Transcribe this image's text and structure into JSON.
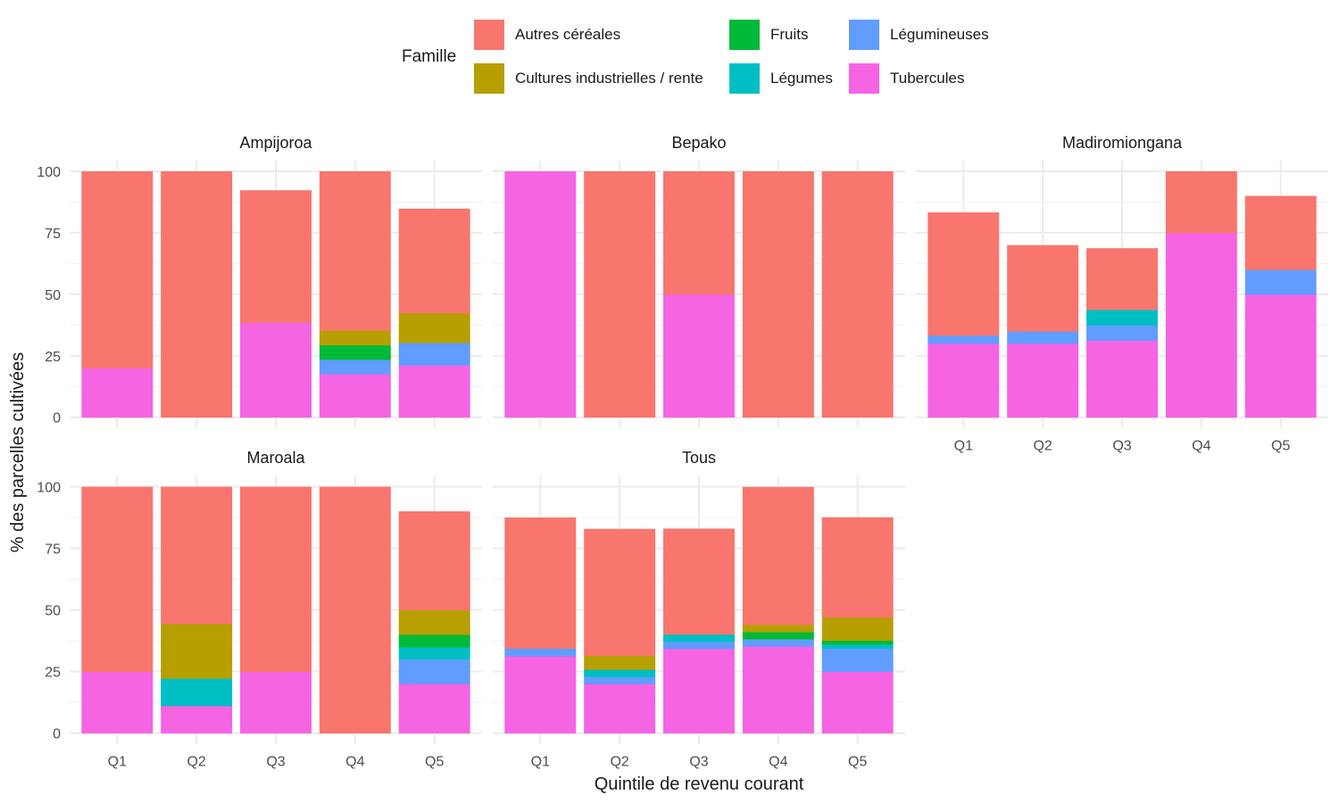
{
  "chart_data": {
    "type": "bar",
    "stacked": true,
    "faceted": true,
    "xlabel": "Quintile de revenu courant",
    "ylabel": "% des parcelles cultivées",
    "ylim": [
      0,
      100
    ],
    "yticks": [
      0,
      25,
      50,
      75,
      100
    ],
    "grid": true,
    "legend": {
      "title": "Famille",
      "position": "top",
      "entries": [
        {
          "name": "Autres céréales",
          "color": "#F8766D"
        },
        {
          "name": "Cultures industrielles / rente",
          "color": "#B79F00"
        },
        {
          "name": "Fruits",
          "color": "#00BA38"
        },
        {
          "name": "Légumes",
          "color": "#00BFC4"
        },
        {
          "name": "Légumineuses",
          "color": "#619CFF"
        },
        {
          "name": "Tubercules",
          "color": "#F564E3"
        }
      ]
    },
    "stack_order_bottom_to_top": [
      "Tubercules",
      "Légumineuses",
      "Légumes",
      "Fruits",
      "Cultures industrielles / rente",
      "Autres céréales"
    ],
    "categories": [
      "Q1",
      "Q2",
      "Q3",
      "Q4",
      "Q5"
    ],
    "panels": [
      {
        "title": "Ampijoroa",
        "series": [
          {
            "name": "Tubercules",
            "values": [
              20,
              0,
              38.5,
              17.6,
              21.2
            ]
          },
          {
            "name": "Légumineuses",
            "values": [
              0,
              0,
              0,
              5.9,
              9.1
            ]
          },
          {
            "name": "Légumes",
            "values": [
              0,
              0,
              0,
              0,
              0
            ]
          },
          {
            "name": "Fruits",
            "values": [
              0,
              0,
              0,
              5.9,
              0
            ]
          },
          {
            "name": "Cultures industrielles / rente",
            "values": [
              0,
              0,
              0,
              5.9,
              12.1
            ]
          },
          {
            "name": "Autres céréales",
            "values": [
              80,
              100,
              53.8,
              64.7,
              42.4
            ]
          }
        ]
      },
      {
        "title": "Bepako",
        "series": [
          {
            "name": "Tubercules",
            "values": [
              100,
              0,
              50,
              0,
              0
            ]
          },
          {
            "name": "Légumineuses",
            "values": [
              0,
              0,
              0,
              0,
              0
            ]
          },
          {
            "name": "Légumes",
            "values": [
              0,
              0,
              0,
              0,
              0
            ]
          },
          {
            "name": "Fruits",
            "values": [
              0,
              0,
              0,
              0,
              0
            ]
          },
          {
            "name": "Cultures industrielles / rente",
            "values": [
              0,
              0,
              0,
              0,
              0
            ]
          },
          {
            "name": "Autres céréales",
            "values": [
              0,
              100,
              50,
              100,
              100
            ]
          }
        ]
      },
      {
        "title": "Madiromiongana",
        "series": [
          {
            "name": "Tubercules",
            "values": [
              30,
              30,
              31.25,
              75,
              50
            ]
          },
          {
            "name": "Légumineuses",
            "values": [
              3.3,
              5,
              6.25,
              0,
              10
            ]
          },
          {
            "name": "Légumes",
            "values": [
              0,
              0,
              6.25,
              0,
              0
            ]
          },
          {
            "name": "Fruits",
            "values": [
              0,
              0,
              0,
              0,
              0
            ]
          },
          {
            "name": "Cultures industrielles / rente",
            "values": [
              0,
              0,
              0,
              0,
              0
            ]
          },
          {
            "name": "Autres céréales",
            "values": [
              50,
              35,
              25,
              25,
              30
            ]
          }
        ]
      },
      {
        "title": "Maroala",
        "series": [
          {
            "name": "Tubercules",
            "values": [
              25,
              11.1,
              25,
              0,
              20
            ]
          },
          {
            "name": "Légumineuses",
            "values": [
              0,
              0,
              0,
              0,
              10
            ]
          },
          {
            "name": "Légumes",
            "values": [
              0,
              11.1,
              0,
              0,
              5
            ]
          },
          {
            "name": "Fruits",
            "values": [
              0,
              0,
              0,
              0,
              5
            ]
          },
          {
            "name": "Cultures industrielles / rente",
            "values": [
              0,
              22.2,
              0,
              0,
              10
            ]
          },
          {
            "name": "Autres céréales",
            "values": [
              75,
              55.6,
              75,
              100,
              40
            ]
          }
        ]
      },
      {
        "title": "Tous",
        "series": [
          {
            "name": "Tubercules",
            "values": [
              31.3,
              20,
              34.3,
              35.3,
              25
            ]
          },
          {
            "name": "Légumineuses",
            "values": [
              3.1,
              2.9,
              2.9,
              2.9,
              9.4
            ]
          },
          {
            "name": "Légumes",
            "values": [
              0,
              2.9,
              2.9,
              0,
              1.6
            ]
          },
          {
            "name": "Fruits",
            "values": [
              0,
              0,
              0,
              2.9,
              1.6
            ]
          },
          {
            "name": "Cultures industrielles / rente",
            "values": [
              0,
              5.7,
              0,
              2.9,
              9.4
            ]
          },
          {
            "name": "Autres céréales",
            "values": [
              53.1,
              51.4,
              42.9,
              55.9,
              40.6
            ]
          }
        ]
      }
    ]
  }
}
